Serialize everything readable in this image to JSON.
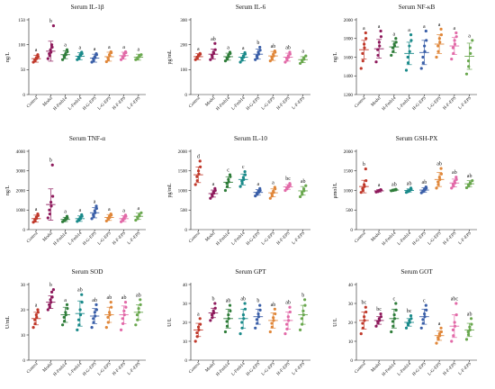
{
  "figure": {
    "categories": [
      "Control",
      "Model",
      "H-Fmb14",
      "L-Fmb14",
      "H-G-EPS",
      "L-G-EPS",
      "H-F-EPS",
      "L-F-EPS"
    ],
    "colors": [
      "#c0392b",
      "#8e1a5c",
      "#2f7d3a",
      "#1a8a8a",
      "#3a5fa8",
      "#e0873a",
      "#e26aa8",
      "#6aa84f"
    ]
  },
  "chart_data": [
    {
      "type": "scatter",
      "title": "Serum IL-1β",
      "ylabel": "ng/L",
      "ylim": [
        0,
        150
      ],
      "yticks": [
        0,
        50,
        100,
        150
      ],
      "means": [
        72,
        87,
        80,
        77,
        73,
        76,
        78,
        75
      ],
      "sds": [
        7,
        20,
        8,
        7,
        8,
        9,
        7,
        6
      ],
      "letters": [
        "a",
        "b",
        "a",
        "a",
        "a",
        "a",
        "a",
        "a"
      ],
      "points": [
        [
          65,
          68,
          70,
          72,
          74,
          76,
          80
        ],
        [
          72,
          78,
          82,
          85,
          90,
          95,
          100,
          138
        ],
        [
          70,
          74,
          78,
          80,
          82,
          86,
          90
        ],
        [
          70,
          72,
          75,
          78,
          80,
          82,
          85
        ],
        [
          65,
          68,
          72,
          74,
          76,
          80,
          82
        ],
        [
          66,
          70,
          74,
          78,
          80,
          84,
          86
        ],
        [
          70,
          74,
          76,
          78,
          82,
          84,
          86
        ],
        [
          70,
          72,
          74,
          76,
          78,
          80
        ]
      ]
    },
    {
      "type": "scatter",
      "title": "Serum IL-6",
      "ylabel": "pg/mL",
      "ylim": [
        0,
        300
      ],
      "yticks": [
        0,
        100,
        200,
        300
      ],
      "means": [
        152,
        162,
        152,
        150,
        162,
        155,
        150,
        140
      ],
      "sds": [
        12,
        20,
        14,
        15,
        20,
        18,
        16,
        12
      ],
      "letters": [
        "a",
        "ab",
        "a",
        "a",
        "b",
        "ab",
        "ab",
        "a"
      ],
      "points": [
        [
          140,
          145,
          150,
          155,
          158,
          162,
          165
        ],
        [
          140,
          150,
          158,
          165,
          170,
          180,
          205
        ],
        [
          135,
          142,
          148,
          152,
          158,
          165,
          170
        ],
        [
          130,
          138,
          145,
          150,
          155,
          162,
          168
        ],
        [
          140,
          148,
          155,
          162,
          170,
          178,
          190
        ],
        [
          135,
          142,
          150,
          155,
          162,
          170,
          175
        ],
        [
          130,
          138,
          145,
          150,
          155,
          162,
          170
        ],
        [
          125,
          132,
          138,
          142,
          148,
          155
        ]
      ]
    },
    {
      "type": "scatter",
      "title": "Serum NF-κB",
      "ylabel": "ng/L",
      "ylim": [
        1200,
        2000
      ],
      "yticks": [
        1200,
        1400,
        1600,
        1800,
        2000
      ],
      "means": [
        1680,
        1690,
        1710,
        1640,
        1650,
        1740,
        1720,
        1610
      ],
      "sds": [
        100,
        100,
        60,
        120,
        130,
        100,
        90,
        140
      ],
      "letters": [
        "a",
        "a",
        "a",
        "a",
        "a",
        "a",
        "a",
        "a"
      ],
      "points": [
        [
          1480,
          1560,
          1640,
          1700,
          1740,
          1800,
          1860
        ],
        [
          1550,
          1620,
          1680,
          1720,
          1760,
          1820,
          1880
        ],
        [
          1620,
          1660,
          1700,
          1720,
          1740,
          1760,
          1800
        ],
        [
          1460,
          1540,
          1600,
          1660,
          1720,
          1780,
          1840
        ],
        [
          1480,
          1540,
          1600,
          1660,
          1720,
          1780,
          1880
        ],
        [
          1600,
          1660,
          1720,
          1760,
          1800,
          1840,
          1900
        ],
        [
          1580,
          1640,
          1700,
          1740,
          1780,
          1820,
          1860
        ],
        [
          1420,
          1500,
          1560,
          1640,
          1700,
          1780
        ]
      ]
    },
    {
      "type": "scatter",
      "title": "Serum TNF-α",
      "ylabel": "ng/L",
      "ylim": [
        0,
        4000
      ],
      "yticks": [
        0,
        1000,
        2000,
        3000,
        4000
      ],
      "means": [
        560,
        1280,
        520,
        560,
        860,
        620,
        560,
        680
      ],
      "sds": [
        180,
        800,
        110,
        140,
        260,
        150,
        150,
        160
      ],
      "letters": [
        "a",
        "b",
        "a",
        "a",
        "a",
        "a",
        "a",
        "a"
      ],
      "points": [
        [
          380,
          440,
          520,
          580,
          640,
          720,
          800
        ],
        [
          600,
          800,
          1000,
          1200,
          1400,
          1700,
          3300
        ],
        [
          400,
          450,
          480,
          520,
          560,
          600,
          680
        ],
        [
          420,
          480,
          520,
          560,
          620,
          680,
          760
        ],
        [
          560,
          660,
          760,
          860,
          960,
          1080,
          1200
        ],
        [
          440,
          520,
          580,
          620,
          680,
          740,
          800
        ],
        [
          400,
          460,
          520,
          560,
          620,
          680,
          740
        ],
        [
          480,
          560,
          640,
          700,
          760,
          860
        ]
      ]
    },
    {
      "type": "scatter",
      "title": "Serum IL-10",
      "ylabel": "pg/mL",
      "ylim": [
        0,
        2000
      ],
      "yticks": [
        0,
        500,
        1000,
        1500,
        2000
      ],
      "means": [
        1400,
        920,
        1210,
        1280,
        950,
        940,
        1090,
        990
      ],
      "sds": [
        200,
        90,
        140,
        140,
        70,
        100,
        60,
        110
      ],
      "letters": [
        "d",
        "a",
        "c",
        "c",
        "a",
        "a",
        "bc",
        "ab"
      ],
      "points": [
        [
          1150,
          1250,
          1350,
          1420,
          1500,
          1600,
          1750
        ],
        [
          800,
          850,
          900,
          930,
          960,
          1000,
          1050
        ],
        [
          1000,
          1100,
          1180,
          1220,
          1280,
          1350,
          1400
        ],
        [
          1100,
          1180,
          1240,
          1280,
          1330,
          1400,
          1480
        ],
        [
          860,
          900,
          930,
          950,
          980,
          1000,
          1050
        ],
        [
          800,
          860,
          920,
          950,
          980,
          1040,
          1080
        ],
        [
          1000,
          1040,
          1070,
          1090,
          1110,
          1140,
          1180
        ],
        [
          840,
          900,
          950,
          990,
          1040,
          1120
        ]
      ]
    },
    {
      "type": "scatter",
      "title": "Serum GSH-PX",
      "ylabel": "μmol/L",
      "ylim": [
        0,
        2000
      ],
      "yticks": [
        0,
        500,
        1000,
        1500,
        2000
      ],
      "means": [
        1100,
        990,
        1010,
        1000,
        1010,
        1280,
        1190,
        1170
      ],
      "sds": [
        160,
        30,
        20,
        40,
        60,
        180,
        100,
        80
      ],
      "letters": [
        "b",
        "a",
        "ab",
        "ab",
        "ab",
        "ab",
        "ab",
        "ab"
      ],
      "points": [
        [
          950,
          1000,
          1050,
          1100,
          1150,
          1250,
          1550
        ],
        [
          960,
          970,
          980,
          990,
          1000,
          1010,
          1020
        ],
        [
          990,
          1000,
          1005,
          1010,
          1015,
          1020,
          1030
        ],
        [
          950,
          970,
          990,
          1000,
          1010,
          1030,
          1060
        ],
        [
          940,
          970,
          990,
          1010,
          1030,
          1060,
          1090
        ],
        [
          1060,
          1150,
          1220,
          1280,
          1340,
          1420,
          1560
        ],
        [
          1060,
          1110,
          1150,
          1190,
          1230,
          1280,
          1340
        ],
        [
          1070,
          1110,
          1150,
          1170,
          1200,
          1250
        ]
      ]
    },
    {
      "type": "scatter",
      "title": "Serum SOD",
      "ylabel": "U/mL",
      "ylim": [
        0,
        30
      ],
      "yticks": [
        0,
        10,
        20,
        30
      ],
      "means": [
        16.5,
        23,
        18,
        18.5,
        17.5,
        18,
        18,
        19
      ],
      "sds": [
        2.5,
        2.5,
        3,
        5,
        3,
        3,
        3.5,
        3
      ],
      "letters": [
        "a",
        "b",
        "a",
        "ab",
        "ab",
        "ab",
        "ab",
        "ab"
      ],
      "points": [
        [
          13,
          14.5,
          16,
          17,
          18,
          19,
          20
        ],
        [
          20,
          21,
          22,
          23,
          24,
          25,
          27,
          28
        ],
        [
          14,
          15.5,
          17,
          18,
          19,
          20.5,
          22
        ],
        [
          12,
          14,
          16,
          18,
          20,
          23,
          26
        ],
        [
          13,
          15,
          16.5,
          17.5,
          19,
          20,
          22
        ],
        [
          13,
          15,
          17,
          18,
          19,
          21,
          23
        ],
        [
          12,
          14.5,
          16.5,
          18,
          19.5,
          21,
          23
        ],
        [
          14,
          16,
          18,
          19,
          20.5,
          22,
          24
        ]
      ]
    },
    {
      "type": "scatter",
      "title": "Serum GPT",
      "ylabel": "U/L",
      "ylim": [
        0,
        40
      ],
      "yticks": [
        0,
        10,
        20,
        30,
        40
      ],
      "means": [
        16,
        25,
        22,
        22,
        23,
        21,
        21,
        24
      ],
      "sds": [
        3.5,
        2.5,
        5,
        5,
        4,
        4,
        4.5,
        5
      ],
      "letters": [
        "a",
        "b",
        "ab",
        "ab",
        "b",
        "ab",
        "ab",
        "b"
      ],
      "points": [
        [
          10,
          12.5,
          14.5,
          16,
          17.5,
          19,
          22
        ],
        [
          21,
          22.5,
          24,
          25,
          26,
          27.5,
          30
        ],
        [
          15,
          18,
          20.5,
          22,
          24,
          26,
          29
        ],
        [
          14,
          17,
          20,
          22,
          24,
          27,
          30
        ],
        [
          17,
          19.5,
          21.5,
          23,
          24.5,
          26.5,
          29
        ],
        [
          15,
          17.5,
          19.5,
          21,
          22.5,
          24.5,
          27
        ],
        [
          14,
          16.5,
          19,
          21,
          23,
          25.5,
          28
        ],
        [
          16,
          19,
          22,
          24,
          26,
          29,
          32
        ]
      ]
    },
    {
      "type": "scatter",
      "title": "Serum GOT",
      "ylabel": "U/L",
      "ylim": [
        0,
        40
      ],
      "yticks": [
        0,
        10,
        20,
        30,
        40
      ],
      "means": [
        21,
        21,
        22,
        20,
        23,
        13,
        18,
        16
      ],
      "sds": [
        4.5,
        2,
        5,
        2,
        4,
        2.5,
        6,
        3.5
      ],
      "letters": [
        "bc",
        "bc",
        "c",
        "bc",
        "c",
        "a",
        "abc",
        "ab"
      ],
      "points": [
        [
          14,
          17,
          19.5,
          21,
          23,
          25.5,
          28
        ],
        [
          18,
          19.5,
          20.5,
          21,
          22,
          23,
          24.5
        ],
        [
          15,
          18,
          20.5,
          22,
          24,
          26.5,
          30
        ],
        [
          17,
          18.5,
          19.5,
          20,
          21,
          22,
          23.5
        ],
        [
          17,
          19.5,
          21.5,
          23,
          24.5,
          26.5,
          29
        ],
        [
          9,
          11,
          12,
          13,
          14,
          15,
          17
        ],
        [
          10,
          13,
          16,
          18,
          20,
          24,
          30
        ],
        [
          11,
          13.5,
          15,
          16,
          17.5,
          19,
          22
        ]
      ]
    }
  ]
}
